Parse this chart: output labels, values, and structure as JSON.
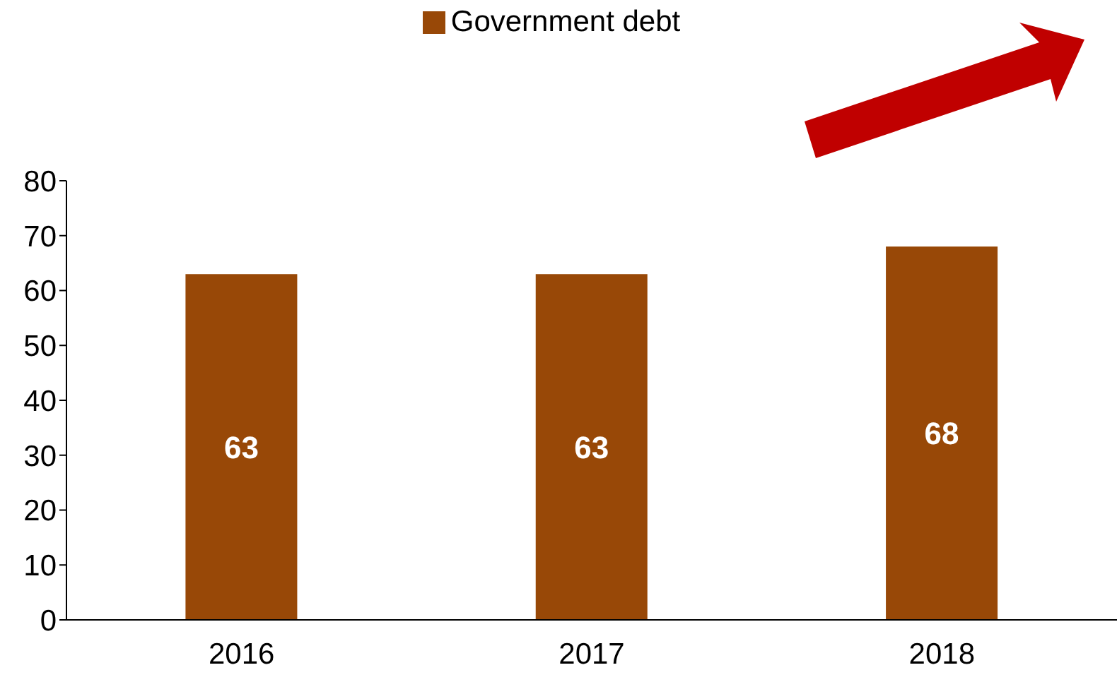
{
  "chart_data": {
    "type": "bar",
    "categories": [
      "2016",
      "2017",
      "2018"
    ],
    "series": [
      {
        "name": "Government debt",
        "color": "#984807",
        "values": [
          63,
          63,
          68
        ]
      }
    ],
    "ylim": [
      0,
      80
    ],
    "yticks": [
      0,
      10,
      20,
      30,
      40,
      50,
      60,
      70,
      80
    ],
    "legend": "top",
    "data_labels": true
  }
}
